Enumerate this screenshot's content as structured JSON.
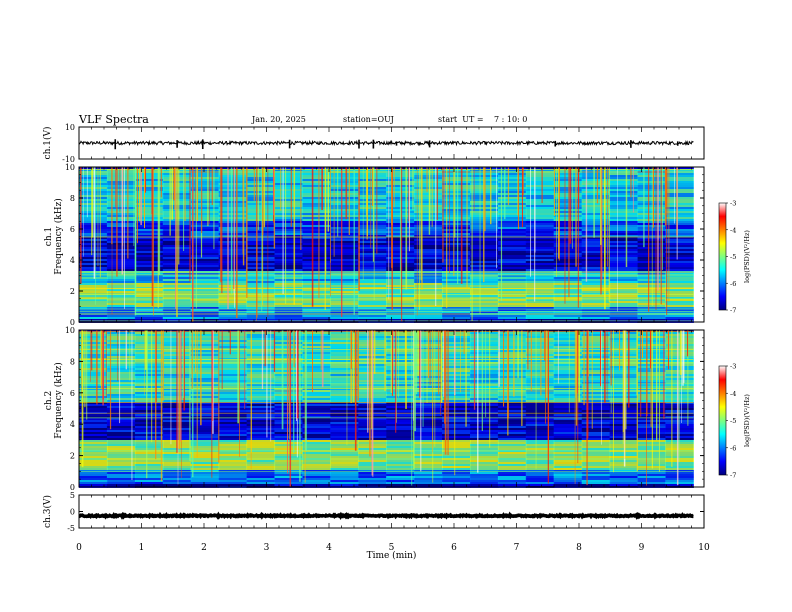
{
  "header": {
    "title": "VLF Spectra",
    "date": "Jan. 20, 2025",
    "station": "station=OUJ",
    "start_label": "start  UT =",
    "start_time": "7 : 10: 0"
  },
  "chart_data": [
    {
      "type": "line",
      "panel": "ch1-waveform",
      "ylabel": "ch.1(V)",
      "ylim": [
        -10,
        10
      ],
      "y_ticks": [
        "10",
        "-10"
      ],
      "xlim": [
        0,
        10
      ],
      "baseline": 0,
      "noise_amplitude": 1,
      "spike_times_min": [
        0.58,
        1.57,
        1.98,
        3.37,
        4.48,
        4.71,
        5.08,
        5.61,
        7.62,
        8.83,
        9.58
      ]
    },
    {
      "type": "heatmap",
      "panel": "ch1-spectrogram",
      "ylabel_line1": "ch.1",
      "ylabel_line2": "Frequency (kHz)",
      "ylim": [
        0,
        10
      ],
      "y_ticks": [
        "0",
        "2",
        "4",
        "6",
        "8",
        "10"
      ],
      "xlim": [
        0,
        10
      ],
      "colorbar": {
        "label": "log(PSD)(V²/Hz)",
        "range": [
          -7,
          -3
        ],
        "ticks": [
          "-3",
          "-4",
          "-5",
          "-6",
          "-7"
        ],
        "colors": [
          "#00007f",
          "#0000ff",
          "#007fff",
          "#00ffff",
          "#7fff7f",
          "#ffff00",
          "#ff7f00",
          "#ff0000",
          "#ffffff"
        ]
      },
      "bands_khz": [
        {
          "from": 0.3,
          "to": 1.0,
          "level": -5.9
        },
        {
          "from": 1.0,
          "to": 2.6,
          "level": -5.0
        },
        {
          "from": 2.6,
          "to": 3.4,
          "level": -5.6
        },
        {
          "from": 3.4,
          "to": 5.6,
          "level": -6.6
        },
        {
          "from": 5.6,
          "to": 6.6,
          "level": -6.2
        },
        {
          "from": 6.6,
          "to": 10.0,
          "level": -5.5
        }
      ]
    },
    {
      "type": "heatmap",
      "panel": "ch2-spectrogram",
      "ylabel_line1": "ch.2",
      "ylabel_line2": "Frequency (kHz)",
      "ylim": [
        0,
        10
      ],
      "y_ticks": [
        "0",
        "2",
        "4",
        "6",
        "8",
        "10"
      ],
      "xlim": [
        0,
        10
      ],
      "colorbar": {
        "label": "log(PSD)(V²/Hz)",
        "range": [
          -7,
          -3
        ],
        "ticks": [
          "-3",
          "-4",
          "-5",
          "-6",
          "-7"
        ],
        "colors": [
          "#00007f",
          "#0000ff",
          "#007fff",
          "#00ffff",
          "#7fff7f",
          "#ffff00",
          "#ff7f00",
          "#ff0000",
          "#ffffff"
        ]
      },
      "bands_khz": [
        {
          "from": 0.3,
          "to": 1.2,
          "level": -6.0
        },
        {
          "from": 1.2,
          "to": 3.0,
          "level": -4.9
        },
        {
          "from": 3.0,
          "to": 5.5,
          "level": -6.6
        },
        {
          "from": 5.5,
          "to": 7.2,
          "level": -5.4
        },
        {
          "from": 7.2,
          "to": 10.0,
          "level": -5.3
        }
      ]
    },
    {
      "type": "line",
      "panel": "ch3-waveform",
      "ylabel": "ch.3(V)",
      "ylim": [
        -5,
        5
      ],
      "y_ticks": [
        "5",
        "0",
        "-5"
      ],
      "xlim": [
        0,
        10
      ],
      "baseline": -1.3,
      "noise_amplitude": 0.2
    }
  ],
  "xaxis": {
    "label": "Time (min)",
    "ticks": [
      "0",
      "1",
      "2",
      "3",
      "4",
      "5",
      "6",
      "7",
      "8",
      "9",
      "10"
    ],
    "data_end_min": 9.83
  }
}
